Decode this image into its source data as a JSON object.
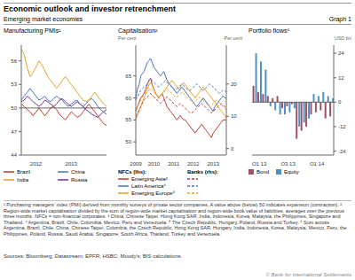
{
  "title": "Economic outlook and investor retrenchment",
  "subtitle": "Emerging market economies",
  "annotations": [
    "Graph 1",
    "¹ Purchasing managers' index (PMI) derived from monthly surveys of private sector companies. A value above (below) 50 indicates expansion (contraction).  ² Region-wide market capitalisation divided by the sum of region-wide market capitalisation and region-wide book value of liabilities; averages over the previous three months. NFCs = non-financial corporates.  ³ China, Chinese Taipei, Hong Kong SAR, India, Indonesia, Korea, Malaysia, the Philippines, Singapore and Thailand.  ⁴ Argentina, Brazil, Chile, Colombia, Mexico, Peru and Venezuela.  ⁵ The Czech Republic, Hungary, Poland, Russia and Turkey.  ⁶ Sum across Argentina, Brazil, Chile, China, Chinese Taipei, Colombia, the Czech Republic, Hong Kong SAR, Hungary, India, Indonesia, Korea, Malaysia, Mexico, Peru, the Philippines, Poland, Russia, Saudi Arabia, Singapore, South Africa, Thailand, Turkey and Venezuela.",
    "Sources: Bloomberg; Datastream; EPFR; HSBC; Moody's; BIS calculations.",
    "© Bank for International Settlements"
  ],
  "chart_data": [
    {
      "type": "line",
      "title": "Manufacturing PMIs¹",
      "categories": [
        null,
        null,
        null,
        null,
        null,
        "2012",
        null,
        null,
        null,
        null,
        null,
        null,
        null,
        null,
        null,
        null,
        null,
        "2013",
        null,
        null,
        null,
        null,
        null,
        null,
        null,
        null,
        null,
        null,
        null,
        null
      ],
      "series": [
        {
          "name": "Brazil",
          "color": "#c0392b",
          "values": [
            50.5,
            50.2,
            49.8,
            49.5,
            49.0,
            49.5,
            50.0,
            49.5,
            49.0,
            49.5,
            50.0,
            50.2,
            49.8,
            49.2,
            48.8,
            48.5,
            49.0,
            49.5,
            49.2,
            48.8,
            49.0,
            49.5,
            50.0,
            50.5,
            50.0,
            49.5,
            49.0,
            48.5,
            48.0,
            47.8
          ]
        },
        {
          "name": "China",
          "color": "#4472c4",
          "values": [
            51.0,
            51.5,
            52.0,
            52.5,
            52.0,
            51.5,
            51.0,
            51.2,
            51.5,
            51.0,
            50.8,
            51.2,
            51.5,
            51.2,
            51.0,
            50.5,
            50.2,
            50.5,
            50.8,
            51.0,
            50.5,
            50.2,
            50.5,
            51.0,
            51.2,
            50.8,
            50.2,
            49.8,
            49.5,
            49.2
          ]
        },
        {
          "name": "India",
          "color": "#e8a020",
          "values": [
            57.5,
            56.8,
            55.2,
            54.0,
            54.5,
            55.2,
            56.0,
            55.5,
            54.8,
            54.0,
            53.5,
            53.0,
            52.5,
            53.0,
            53.5,
            54.0,
            53.5,
            53.0,
            52.5,
            52.0,
            51.5,
            51.0,
            50.8,
            51.0,
            51.5,
            52.0,
            51.5,
            51.0,
            50.5,
            50.2
          ]
        },
        {
          "name": "Russia",
          "color": "#7030a0",
          "values": [
            50.8,
            51.0,
            51.5,
            51.2,
            50.8,
            50.5,
            50.2,
            50.5,
            51.0,
            50.8,
            50.5,
            50.2,
            50.5,
            51.0,
            51.2,
            50.8,
            50.5,
            50.2,
            50.5,
            50.8,
            50.5,
            50.2,
            49.8,
            49.5,
            49.2,
            49.0,
            48.8,
            49.2,
            49.5,
            49.8
          ]
        }
      ],
      "ylim": [
        44,
        58
      ],
      "yticks": [
        44,
        47,
        50,
        53,
        56
      ],
      "hline": 50,
      "grid": false
    },
    {
      "type": "line",
      "title": "Capitalisation²",
      "ylabel": "Per cent",
      "y2label": "Per cent",
      "annotations": [
        "NFCs (lhs):",
        "Banks (rhs):"
      ],
      "categories": [
        "2009",
        null,
        null,
        null,
        null,
        null,
        null,
        null,
        null,
        null,
        null,
        "2010",
        null,
        null,
        null,
        null,
        null,
        null,
        null,
        null,
        null,
        null,
        null,
        "2011",
        null,
        null,
        null,
        null,
        null,
        null,
        null,
        null,
        null,
        null,
        null,
        "2012",
        null,
        null,
        null,
        null,
        null,
        null,
        null,
        null,
        null,
        null,
        null,
        "2013",
        null,
        null,
        null,
        null,
        null,
        null,
        null,
        null
      ],
      "series": [
        {
          "name": "Emerging Asia³",
          "color": "#c0392b",
          "line_style": "solid",
          "values": [
            57,
            58,
            59,
            60,
            60.5,
            61,
            62,
            63,
            64,
            64.5,
            63,
            62,
            61,
            60.5,
            60,
            60.5,
            61,
            60,
            59,
            58,
            57.5,
            57,
            56.5,
            56,
            55.5,
            55,
            55.5,
            56,
            55.5,
            55,
            55,
            54.5,
            54,
            53.5,
            53,
            52.5,
            52,
            52.5,
            53,
            53.5,
            54,
            53.5,
            53,
            52.5,
            52,
            51.5,
            51,
            52,
            52.5,
            53,
            53.5,
            54,
            54.5,
            55,
            55,
            55
          ]
        },
        {
          "name": "Latin America⁴",
          "color": "#4472c4",
          "line_style": "solid",
          "values": [
            60,
            62,
            63,
            65,
            65.5,
            66,
            67,
            68,
            68.5,
            69,
            68,
            67,
            66.5,
            66,
            65.5,
            65,
            65.5,
            66,
            65,
            64,
            63.5,
            63,
            62.5,
            62,
            61.5,
            61,
            61.5,
            62,
            62.5,
            62,
            61.5,
            61,
            60.5,
            60,
            59.5,
            59,
            58.5,
            58,
            58.5,
            59,
            59.5,
            60,
            59.5,
            59,
            58.5,
            58,
            57.5,
            57,
            58,
            58.5,
            59,
            59.5,
            60,
            60.5,
            60,
            60
          ]
        },
        {
          "name": "Emerging Europe⁵",
          "color": "#e8a020",
          "line_style": "solid",
          "values": [
            55,
            56,
            57,
            58,
            59,
            60,
            61,
            62,
            63,
            63.5,
            63,
            62,
            61,
            60.5,
            60,
            60.5,
            61,
            61.5,
            62,
            62.5,
            63,
            63.5,
            64,
            63.5,
            63,
            62.5,
            62,
            62.5,
            63,
            63.5,
            63,
            62.5,
            62,
            61.5,
            61,
            60.5,
            60,
            60.5,
            61,
            61.5,
            62,
            62.5,
            62,
            61.5,
            61,
            60.5,
            60,
            59.5,
            59,
            58.5,
            58,
            57.5,
            57,
            56.5,
            56,
            55.5
          ]
        },
        {
          "name": "Emerging Asia³",
          "color": "#c0392b",
          "line_style": "dashed",
          "axis": "y2",
          "values": [
            10,
            11,
            12,
            13,
            14,
            15,
            15.5,
            16,
            16.5,
            17,
            16.5,
            16,
            15.5,
            15,
            14.5,
            14,
            14.5,
            15,
            15.5,
            16,
            15.5,
            15,
            14.5,
            14,
            13.5,
            13,
            13.5,
            14,
            13.5,
            13,
            12.5,
            12,
            11.5,
            11,
            11,
            11.5,
            12,
            12.5,
            13,
            13.5,
            14,
            13.5,
            13,
            12.5,
            12,
            11.5,
            11,
            11.5,
            12,
            12.5,
            13,
            13.5,
            14,
            13.5,
            13,
            12.5
          ]
        },
        {
          "name": "Latin America⁴",
          "color": "#4472c4",
          "line_style": "dashed",
          "axis": "y2",
          "values": [
            15,
            16,
            17,
            18,
            18.5,
            19,
            19.5,
            20,
            21,
            21.5,
            21,
            20.5,
            20,
            19.5,
            19,
            19.5,
            20,
            20.5,
            21,
            20.5,
            20,
            19.5,
            19,
            18.5,
            18,
            18.5,
            19,
            19.5,
            20,
            19.5,
            19,
            18.5,
            18,
            18,
            18.5,
            19,
            19.5,
            20,
            19.5,
            19,
            18.5,
            18,
            18.5,
            19,
            19.5,
            20,
            19.5,
            19,
            18.5,
            18,
            17.5,
            17,
            17.5,
            18,
            18,
            17.5
          ]
        },
        {
          "name": "Emerging Europe⁵",
          "color": "#e8a020",
          "line_style": "dashed",
          "axis": "y2",
          "values": [
            12,
            13,
            14,
            15,
            16,
            16.5,
            17,
            17.5,
            18,
            18.5,
            18,
            17.5,
            17,
            16.5,
            16,
            16.5,
            17,
            17.5,
            18,
            18.5,
            18,
            17.5,
            17,
            16.5,
            16,
            16,
            16.5,
            17,
            17.5,
            17,
            16.5,
            16,
            15.5,
            15,
            14.5,
            14,
            14.5,
            15,
            15.5,
            16,
            15.5,
            15,
            14.5,
            14,
            13.5,
            13,
            13.5,
            14,
            14.5,
            15,
            14.5,
            14,
            13.5,
            13,
            12.5,
            12
          ]
        }
      ],
      "ylim": [
        47,
        72
      ],
      "yticks": [
        50,
        55,
        60,
        65
      ],
      "y2lim": [
        -2,
        32
      ],
      "y2ticks": [
        0,
        10,
        20
      ],
      "grid": false
    },
    {
      "type": "bar",
      "title": "Portfolio flows⁶",
      "ylabel": "USD bn",
      "categories": [
        null,
        "Q1 13",
        null,
        null,
        null,
        null,
        null,
        "Q3 13",
        null,
        null,
        null,
        null,
        null,
        "Q1 14",
        null,
        null,
        null
      ],
      "series": [
        {
          "name": "Bond",
          "color": "#a05060",
          "values": [
            8,
            5,
            4,
            3,
            2,
            3,
            -3,
            -2,
            -1,
            -18,
            -14,
            -12,
            -6,
            -5,
            -4,
            -8,
            -7
          ]
        },
        {
          "name": "Equity",
          "color": "#5090c0",
          "values": [
            24,
            20,
            16,
            -2,
            -4,
            -6,
            -6,
            -5,
            -3,
            -12,
            -10,
            -8,
            4,
            3,
            5,
            3,
            2
          ]
        }
      ],
      "ylim": [
        -26,
        28
      ],
      "yticks": [
        -24,
        -12,
        0,
        12,
        24
      ],
      "hline": 0,
      "grid": false
    }
  ]
}
